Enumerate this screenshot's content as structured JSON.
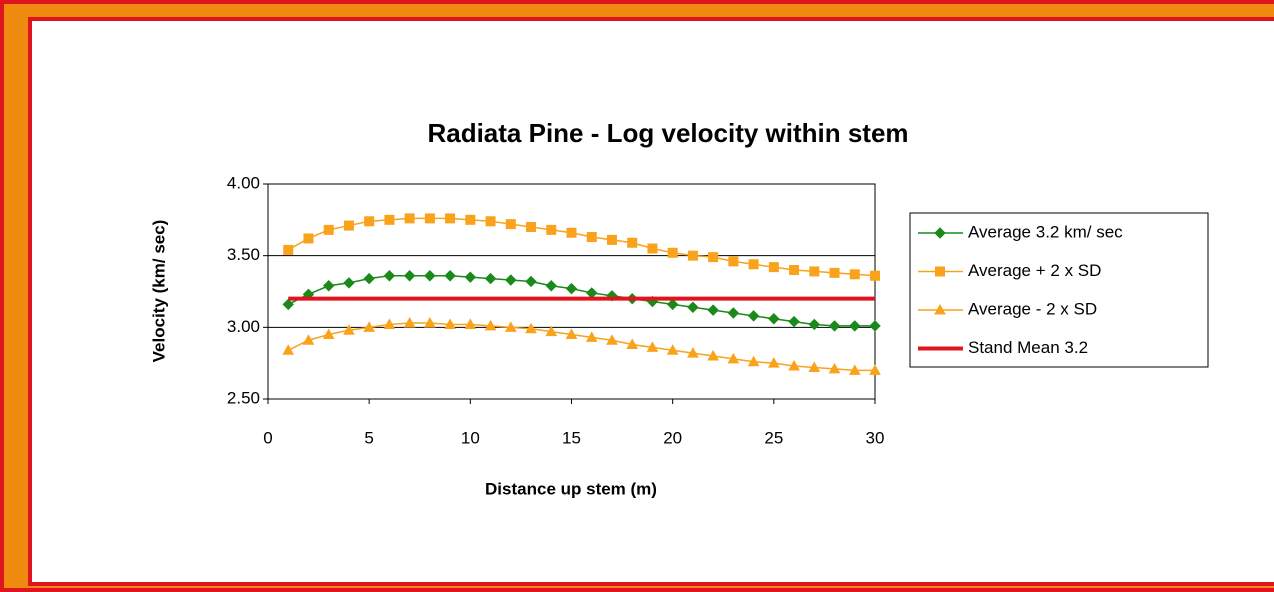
{
  "chart_data": {
    "type": "line",
    "title": "Radiata Pine - Log velocity within stem",
    "x_label": "Distance up stem (m)",
    "y_label": "Velocity (km/ sec)",
    "x": [
      1,
      2,
      3,
      4,
      5,
      6,
      7,
      8,
      9,
      10,
      11,
      12,
      13,
      14,
      15,
      16,
      17,
      18,
      19,
      20,
      21,
      22,
      23,
      24,
      25,
      26,
      27,
      28,
      29,
      30
    ],
    "series": [
      {
        "name": "Average 3.2 km/ sec",
        "color": "#1a8a1a",
        "marker": "diamond",
        "values": [
          3.16,
          3.23,
          3.29,
          3.31,
          3.34,
          3.36,
          3.36,
          3.36,
          3.36,
          3.35,
          3.34,
          3.33,
          3.32,
          3.29,
          3.27,
          3.24,
          3.22,
          3.2,
          3.18,
          3.16,
          3.14,
          3.12,
          3.1,
          3.08,
          3.06,
          3.04,
          3.02,
          3.01,
          3.01,
          3.01
        ]
      },
      {
        "name": "Average + 2 x SD",
        "color": "#f9a21b",
        "marker": "square",
        "values": [
          3.54,
          3.62,
          3.68,
          3.71,
          3.74,
          3.75,
          3.76,
          3.76,
          3.76,
          3.75,
          3.74,
          3.72,
          3.7,
          3.68,
          3.66,
          3.63,
          3.61,
          3.59,
          3.55,
          3.52,
          3.5,
          3.49,
          3.46,
          3.44,
          3.42,
          3.4,
          3.39,
          3.38,
          3.37,
          3.36
        ]
      },
      {
        "name": "Average - 2 x SD",
        "color": "#f9a21b",
        "marker": "triangle",
        "values": [
          2.84,
          2.91,
          2.95,
          2.98,
          3.0,
          3.02,
          3.03,
          3.03,
          3.02,
          3.02,
          3.01,
          3.0,
          2.99,
          2.97,
          2.95,
          2.93,
          2.91,
          2.88,
          2.86,
          2.84,
          2.82,
          2.8,
          2.78,
          2.76,
          2.75,
          2.73,
          2.72,
          2.71,
          2.7,
          2.7
        ]
      },
      {
        "name": "Stand Mean 3.2",
        "color": "#e0141e",
        "marker": "none",
        "values": [
          3.2,
          3.2,
          3.2,
          3.2,
          3.2,
          3.2,
          3.2,
          3.2,
          3.2,
          3.2,
          3.2,
          3.2,
          3.2,
          3.2,
          3.2,
          3.2,
          3.2,
          3.2,
          3.2,
          3.2,
          3.2,
          3.2,
          3.2,
          3.2,
          3.2,
          3.2,
          3.2,
          3.2,
          3.2,
          3.2
        ]
      }
    ],
    "xlim": [
      0,
      30
    ],
    "xticks": [
      0,
      5,
      10,
      15,
      20,
      25,
      30
    ],
    "ylim": [
      2.5,
      4
    ],
    "yticks": [
      {
        "value": 2.5,
        "label": "2.50"
      },
      {
        "value": 3,
        "label": "3.00"
      },
      {
        "value": 3.5,
        "label": "3.50"
      },
      {
        "value": 4,
        "label": "4.00"
      }
    ],
    "grid": true,
    "legend": "right"
  }
}
